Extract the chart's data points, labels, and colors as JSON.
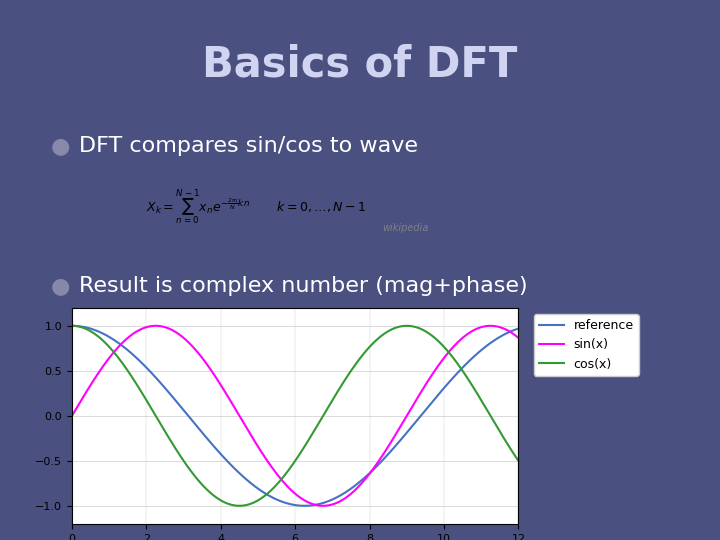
{
  "title": "Basics of DFT",
  "bullet1": "DFT compares sin/cos to wave",
  "bullet2": "Result is complex number (mag+phase)",
  "bg_color": "#4a5080",
  "title_color": "#d0d4f0",
  "text_color": "#ffffff",
  "plot_xlim": [
    0,
    12
  ],
  "plot_ylim": [
    -1.2,
    1.2
  ],
  "plot_yticks": [
    -1,
    -0.5,
    0,
    0.5,
    1
  ],
  "plot_xticks": [
    0,
    2,
    4,
    6,
    8,
    10,
    12
  ],
  "ref_color": "#4472C4",
  "sin_color": "#FF00FF",
  "cos_color": "#339933",
  "ref_freq": 0.5,
  "sin_freq": 0.698,
  "cos_freq": 0.698,
  "legend_labels": [
    "reference",
    "sin(x)",
    "cos(x)"
  ],
  "formula_box_color": "#ffffff",
  "formula_text": "$X_k = \\sum_{n=0}^{N-1} x_n e^{-\\frac{2\\pi i}{N}kn}$    $k=0,\\ldots,N-1$"
}
